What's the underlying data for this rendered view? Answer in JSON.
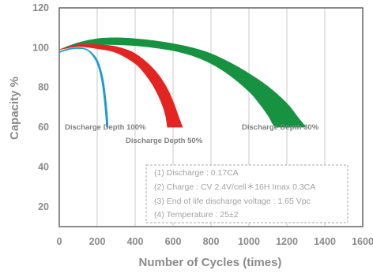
{
  "chart_data": {
    "type": "area",
    "xlabel": "Number of Cycles (times)",
    "ylabel": "Capacity %",
    "xlim": [
      0,
      1600
    ],
    "ylim": [
      10,
      120
    ],
    "x_ticks": [
      0,
      200,
      400,
      600,
      800,
      1000,
      1200,
      1400,
      1600
    ],
    "y_ticks": [
      20,
      40,
      60,
      80,
      100,
      120
    ],
    "x_tick_labels": [
      "0",
      "200",
      "400",
      "600",
      "800",
      "1000",
      "1200",
      "1400",
      "1600"
    ],
    "y_tick_labels": [
      "20",
      "40",
      "60",
      "80",
      "100",
      "120"
    ],
    "grid": "vertical",
    "series": [
      {
        "name": "Discharge Depth 30%",
        "color": "#169241",
        "upper": [
          [
            0,
            99
          ],
          [
            100,
            102.5
          ],
          [
            200,
            104.5
          ],
          [
            300,
            105
          ],
          [
            400,
            104.5
          ],
          [
            500,
            103.5
          ],
          [
            600,
            102
          ],
          [
            700,
            100
          ],
          [
            800,
            97
          ],
          [
            900,
            92.5
          ],
          [
            1000,
            87
          ],
          [
            1100,
            80.5
          ],
          [
            1200,
            72
          ],
          [
            1250,
            66
          ],
          [
            1300,
            60
          ]
        ],
        "lower": [
          [
            0,
            99
          ],
          [
            100,
            101
          ],
          [
            200,
            101.5
          ],
          [
            300,
            101.5
          ],
          [
            400,
            101
          ],
          [
            500,
            100
          ],
          [
            600,
            98.5
          ],
          [
            700,
            96
          ],
          [
            800,
            92
          ],
          [
            900,
            86
          ],
          [
            1000,
            78
          ],
          [
            1050,
            72.5
          ],
          [
            1100,
            66
          ],
          [
            1130,
            61
          ],
          [
            1150,
            60
          ]
        ]
      },
      {
        "name": "Discharge Depth 50%",
        "color": "#e42421",
        "upper": [
          [
            0,
            99
          ],
          [
            100,
            101.5
          ],
          [
            200,
            101.5
          ],
          [
            300,
            100.5
          ],
          [
            400,
            97
          ],
          [
            500,
            89
          ],
          [
            560,
            81
          ],
          [
            600,
            73
          ],
          [
            630,
            65
          ],
          [
            650,
            60
          ]
        ],
        "lower": [
          [
            0,
            99
          ],
          [
            100,
            100.5
          ],
          [
            200,
            99.5
          ],
          [
            300,
            97.5
          ],
          [
            400,
            92
          ],
          [
            450,
            87
          ],
          [
            500,
            80
          ],
          [
            540,
            72
          ],
          [
            560,
            66
          ],
          [
            570,
            60
          ]
        ]
      },
      {
        "name": "Discharge Depth 100%",
        "color": "#1c9ad6",
        "upper": [
          [
            0,
            98
          ],
          [
            50,
            99.5
          ],
          [
            100,
            100
          ],
          [
            150,
            99
          ],
          [
            200,
            94
          ],
          [
            230,
            85
          ],
          [
            245,
            75
          ],
          [
            255,
            65
          ],
          [
            258,
            60
          ]
        ],
        "lower": [
          [
            0,
            97.5
          ],
          [
            50,
            99
          ],
          [
            100,
            99.5
          ],
          [
            150,
            98.5
          ],
          [
            195,
            93
          ],
          [
            220,
            85
          ],
          [
            235,
            75
          ],
          [
            245,
            65
          ],
          [
            248,
            60
          ]
        ]
      }
    ],
    "annotations": {
      "label_100": "Discharge Depth 100%",
      "label_50": "Discharge Depth 50%",
      "label_30": "Discharge Depth 30%"
    },
    "conditions": [
      "(1) Discharge : 0.17CA",
      "(2) Charge : CV 2.4V/cell＊16H Imax 0.3CA",
      "(3) End of life discharge voltage : 1.65 Vpc",
      "(4) Temperature : 25±2"
    ]
  }
}
